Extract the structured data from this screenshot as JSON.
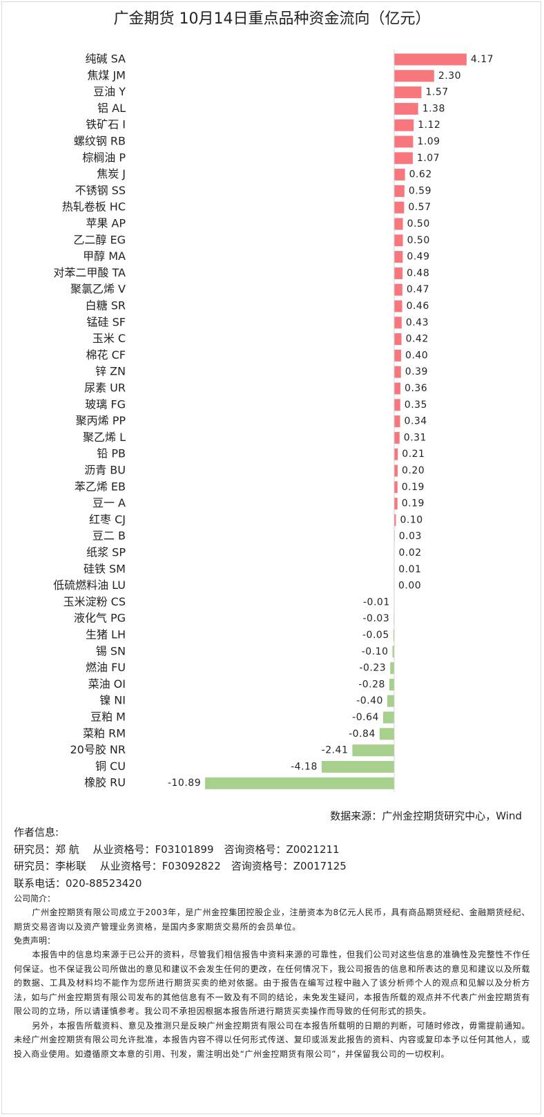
{
  "chart_data": {
    "type": "bar",
    "orientation": "horizontal",
    "title": "广金期货 10月14日重点品种资金流向（亿元）",
    "categories": [
      "纯碱 SA",
      "焦煤 JM",
      "豆油 Y",
      "铝 AL",
      "铁矿石 I",
      "螺纹钢 RB",
      "棕榈油 P",
      "焦炭 J",
      "不锈钢 SS",
      "热轧卷板 HC",
      "苹果 AP",
      "乙二醇 EG",
      "甲醇 MA",
      "对苯二甲酸 TA",
      "聚氯乙烯 V",
      "白糖 SR",
      "锰硅 SF",
      "玉米 C",
      "棉花 CF",
      "锌 ZN",
      "尿素 UR",
      "玻璃 FG",
      "聚丙烯 PP",
      "聚乙烯 L",
      "铅 PB",
      "沥青 BU",
      "苯乙烯 EB",
      "豆一 A",
      "红枣 CJ",
      "豆二 B",
      "纸浆 SP",
      "硅铁 SM",
      "低硫燃料油 LU",
      "玉米淀粉 CS",
      "液化气 PG",
      "生猪 LH",
      "锡 SN",
      "燃油 FU",
      "菜油 OI",
      "镍 NI",
      "豆粕 M",
      "菜粕 RM",
      "20号胶 NR",
      "铜 CU",
      "橡胶 RU"
    ],
    "values": [
      4.17,
      2.3,
      1.57,
      1.38,
      1.12,
      1.09,
      1.07,
      0.62,
      0.59,
      0.57,
      0.5,
      0.5,
      0.49,
      0.48,
      0.47,
      0.46,
      0.43,
      0.42,
      0.4,
      0.39,
      0.36,
      0.35,
      0.34,
      0.31,
      0.21,
      0.2,
      0.19,
      0.19,
      0.1,
      0.03,
      0.02,
      0.01,
      0,
      -0.01,
      -0.03,
      -0.05,
      -0.1,
      -0.23,
      -0.28,
      -0.4,
      -0.64,
      -0.84,
      -2.41,
      -4.18,
      -10.89
    ],
    "value_labels": [
      "4.17",
      "2.30",
      "1.57",
      "1.38",
      "1.12",
      "1.09",
      "1.07",
      "0.62",
      "0.59",
      "0.57",
      "0.50",
      "0.50",
      "0.49",
      "0.48",
      "0.47",
      "0.46",
      "0.43",
      "0.42",
      "0.40",
      "0.39",
      "0.36",
      "0.35",
      "0.34",
      "0.31",
      "0.21",
      "0.20",
      "0.19",
      "0.19",
      "0.10",
      "0.03",
      "0.02",
      "0.01",
      "0.00",
      "-0.01",
      "-0.03",
      "-0.05",
      "-0.10",
      "-0.23",
      "-0.28",
      "-0.40",
      "-0.64",
      "-0.84",
      "-2.41",
      "-4.18",
      "-10.89"
    ],
    "positive_color": "#f8777e",
    "negative_color": "#a8d08d",
    "source": "数据来源：广州金控期货研究中心，Wind"
  },
  "author_info": {
    "heading": "作者信息:",
    "lines": [
      "研究员：郑 航　 从业资格号：F03101899　咨询资格号：Z0021211",
      "研究员：李彬联　 从业资格号：F03092822　咨询资格号：Z0017125",
      "联系电话：020-88523420"
    ]
  },
  "company": {
    "heading": "公司简介：",
    "text": "广州金控期货有限公司成立于2003年，是广州金控集团控股企业，注册资本为8亿元人民币，具有商品期货经纪、金融期货经纪、期货交易咨询以及资产管理业务资格，是国内多家期货交易所的会员单位。"
  },
  "disclaimer": {
    "heading": "免责声明：",
    "paragraphs": [
      "本报告中的信息均来源于已公开的资料，尽管我们相信报告中资料来源的可靠性，但我们公司对这些信息的准确性及完整性不作任何保证。也不保证我公司所做出的意见和建议不会发生任何的更改，在任何情况下，我公司报告的信息和所表达的意见和建议以及所载的数据、工具及材料均不能作为您所进行期货买卖的绝对依据。由于报告在编写过程中融入了该分析师个人的观点和见解以及分析方法，如与广州金控期货有限公司发布的其他信息有不一致及有不同的结论，未免发生疑问，本报告所载的观点并不代表广州金控期货有限公司的立场，所以请谨慎参考。我公司不承担因根据本报告所进行期货买卖操作而导致的任何形式的损失。",
      "另外，本报告所载资料、意见及推测只是反映广州金控期货有限公司在本报告所载明的日期的判断，可随时修改，毋需提前通知。未经广州金控期货有限公司允许批准，本报告内容不得以任何形式传送、复印或派发此报告的资料、内容或复印本予以任何其他人，或投入商业使用。如遵循原文本意的引用、刊发，需注明出处“广州金控期货有限公司”，并保留我公司的一切权利。"
    ]
  }
}
